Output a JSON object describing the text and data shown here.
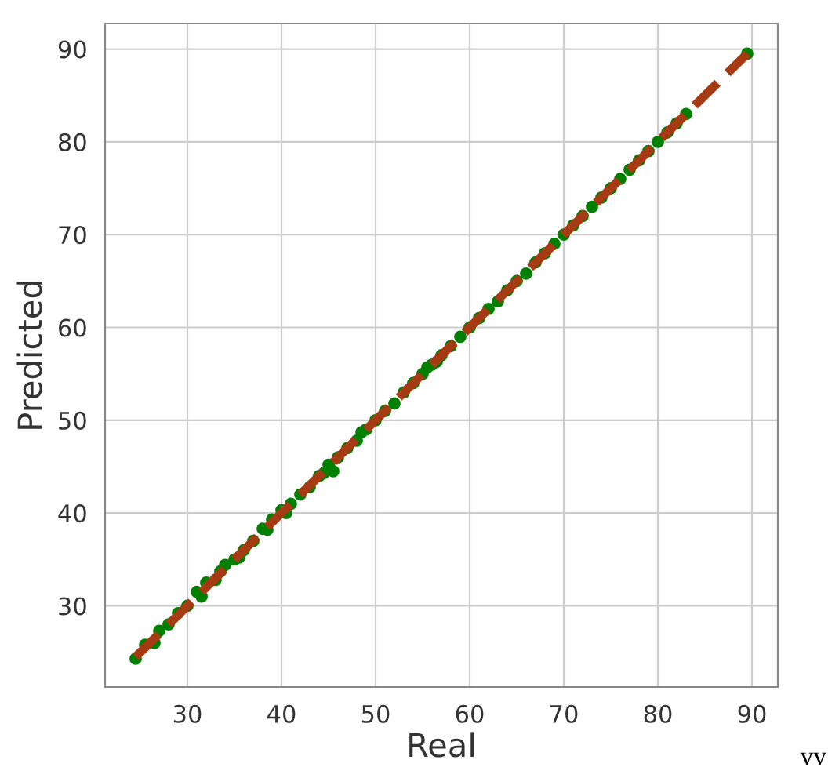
{
  "chart_data": {
    "type": "scatter",
    "xlabel": "Real",
    "ylabel": "Predicted",
    "xlim": [
      21.25,
      92.75
    ],
    "ylim": [
      21.25,
      92.75
    ],
    "xticks": [
      30,
      40,
      50,
      60,
      70,
      80,
      90
    ],
    "yticks": [
      30,
      40,
      50,
      60,
      70,
      80,
      90
    ],
    "grid": true,
    "marker": "circle",
    "series": [
      {
        "color": "#008000",
        "x": [
          24.5,
          25.5,
          26.5,
          27,
          28,
          29,
          30,
          31,
          31.5,
          32,
          33,
          33.5,
          34,
          35,
          35.5,
          36,
          37,
          38,
          38.5,
          39,
          40,
          40.5,
          41,
          42,
          43,
          44,
          44.5,
          45,
          45.5,
          46,
          47,
          48,
          48.5,
          49,
          50,
          51,
          52,
          53,
          54,
          55,
          55.5,
          56,
          56.5,
          57,
          58,
          59,
          60,
          61,
          62,
          63,
          64,
          65,
          66,
          67,
          68,
          69,
          70,
          71,
          72,
          73,
          74,
          75,
          76,
          77,
          78,
          79,
          80,
          81,
          82,
          83,
          89.5
        ],
        "values": [
          24.3,
          25.8,
          26,
          27.3,
          28,
          29.2,
          30,
          31.5,
          31,
          32.5,
          32.8,
          33.7,
          34.4,
          35,
          35.2,
          36,
          37,
          38.3,
          38.2,
          39.3,
          40.3,
          40,
          41,
          42,
          42.8,
          44,
          44.3,
          45.2,
          44.5,
          46,
          47,
          47.8,
          48.7,
          49,
          50,
          51,
          51.8,
          53,
          54,
          55,
          55.7,
          56,
          56.3,
          57,
          58,
          59,
          60,
          61,
          62,
          62.8,
          64,
          65,
          65.8,
          67,
          68,
          69,
          70,
          71,
          72,
          73,
          74,
          75,
          76,
          77,
          78,
          79,
          80,
          81,
          82,
          83,
          89.5
        ]
      },
      {
        "type": "line",
        "color": "#a63a12",
        "line_style": "dashed",
        "marker": "none",
        "x": [
          24.5,
          89.5
        ],
        "values": [
          24.5,
          89.5
        ]
      }
    ],
    "annotations": [
      "vv"
    ]
  }
}
